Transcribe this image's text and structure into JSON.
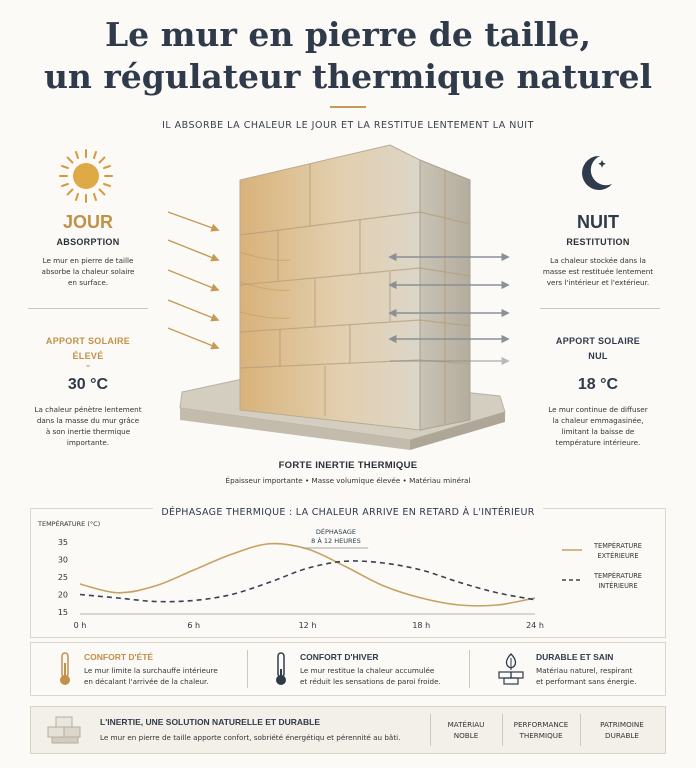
{
  "title_line1": "Le mur en pierre de taille,",
  "title_line2": "un régulateur thermique naturel",
  "subtitle": "IL ABSORBE LA CHALEUR LE JOUR ET LA RESTITUE LENTEMENT LA NUIT",
  "colors": {
    "gold": "#c29048",
    "navy": "#2f3a4a",
    "gray_arrow": "#8b8f96"
  },
  "day": {
    "heading": "JOUR",
    "subheading": "ABSORPTION",
    "text1": "Le mur en pierre de taille",
    "text2": "absorbe la chaleur solaire",
    "text3": "en surface.",
    "apport_1": "APPORT SOLAIRE",
    "apport_2": "ÉLEVÉ",
    "temperature": "30 °C",
    "note1": "La chaleur pénètre lentement",
    "note2": "dans la masse du mur grâce",
    "note3": "à son inertie thermique",
    "note4": "importante."
  },
  "night": {
    "heading": "NUIT",
    "subheading": "RESTITUTION",
    "text1": "La chaleur stockée dans la",
    "text2": "masse est restituée lentement",
    "text3": "vers l'intérieur et l'extérieur.",
    "apport_1": "APPORT SOLAIRE",
    "apport_2": "NUL",
    "temperature": "18 °C",
    "note1": "Le mur continue de diffuser",
    "note2": "la chaleur emmagasinée,",
    "note3": "limitant la baisse de",
    "note4": "température intérieure."
  },
  "wall": {
    "title": "FORTE INERTIE THERMIQUE",
    "details": "Épaisseur importante • Masse volumique élevée • Matériau minéral"
  },
  "chart_section_title": "DÉPHASAGE THERMIQUE : LA CHALEUR ARRIVE EN RETARD À L'INTÉRIEUR",
  "chart_data": {
    "type": "line",
    "ylabel": "TEMPÉRATURE (°C)",
    "ylim": [
      15,
      35
    ],
    "y_ticks": [
      "35",
      "30",
      "25",
      "20",
      "15"
    ],
    "xlim": [
      0,
      24
    ],
    "x_ticks": [
      "0 h",
      "6 h",
      "12 h",
      "18 h",
      "24 h"
    ],
    "annotation_line1": "DÉPHASAGE",
    "annotation_line2": "8 À 12 HEURES",
    "series": [
      {
        "name_line1": "TEMPÉRATURE",
        "name_line2": "EXTÉRIEURE",
        "style": "solid",
        "color": "#c8a062",
        "x": [
          0,
          2,
          4,
          6,
          8,
          10,
          12,
          14,
          16,
          18,
          20,
          22,
          24
        ],
        "y": [
          23,
          20.5,
          22.5,
          27,
          31.5,
          34.5,
          33,
          28,
          22.5,
          19,
          17,
          17,
          19
        ]
      },
      {
        "name_line1": "TEMPÉRATURE",
        "name_line2": "INTÉRIEURE",
        "style": "dashed",
        "color": "#3a4150",
        "x": [
          0,
          2,
          4,
          6,
          8,
          10,
          12,
          14,
          16,
          18,
          20,
          22,
          24
        ],
        "y": [
          20,
          19,
          18,
          18.3,
          20,
          23.5,
          27.5,
          29.5,
          29,
          27,
          23.5,
          20.5,
          18.5
        ]
      }
    ]
  },
  "benefits": [
    {
      "title": "CONFORT D'ÉTÉ",
      "line1": "Le mur limite la surchauffe intérieure",
      "line2": "en décalant l'arrivée de la chaleur.",
      "icon": "thermometer-warm-icon"
    },
    {
      "title": "CONFORT D'HIVER",
      "line1": "Le mur restitue la chaleur accumulée",
      "line2": "et réduit les sensations de paroi froide.",
      "icon": "thermometer-cold-icon"
    },
    {
      "title": "DURABLE ET SAIN",
      "line1": "Matériau naturel, respirant",
      "line2": "et performant sans énergie.",
      "icon": "stone-leaf-icon"
    }
  ],
  "footer": {
    "title": "L'INERTIE, UNE SOLUTION NATURELLE ET DURABLE",
    "text": "Le mur en pierre de taille apporte confort, sobriété énergétiqu et pérennité au bâti.",
    "tags": [
      {
        "line1": "MATÉRIAU",
        "line2": "NOBLE"
      },
      {
        "line1": "PERFORMANCE",
        "line2": "THERMIQUE"
      },
      {
        "line1": "PATRIMOINE",
        "line2": "DURABLE"
      }
    ]
  }
}
